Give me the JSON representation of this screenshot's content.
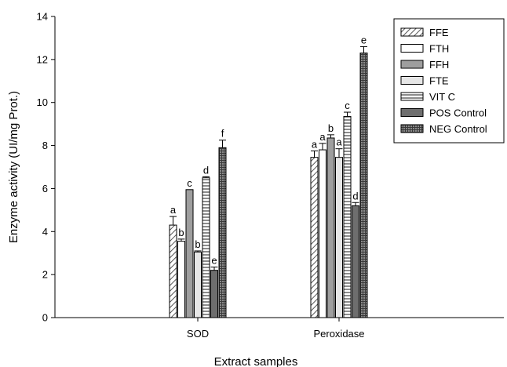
{
  "chart_data": {
    "type": "bar",
    "categories": [
      "SOD",
      "Peroxidase"
    ],
    "xlabel": "Extract samples",
    "ylabel": "Enzyme activity (UI/mg Prot.)",
    "ylim": [
      0,
      14
    ],
    "yticks": [
      0,
      2,
      4,
      6,
      8,
      10,
      12,
      14
    ],
    "grid": false,
    "legend_position": "top-right",
    "series": [
      {
        "name": "FFE",
        "pattern": "diagonal-hatch",
        "values": [
          4.3,
          7.45
        ],
        "errors": [
          0.4,
          0.3
        ],
        "labels": [
          "a",
          "a"
        ]
      },
      {
        "name": "FTH",
        "pattern": "white",
        "values": [
          3.55,
          7.8
        ],
        "errors": [
          0.1,
          0.3
        ],
        "labels": [
          "b",
          "a"
        ]
      },
      {
        "name": "FFH",
        "pattern": "grey",
        "values": [
          5.95,
          8.35
        ],
        "errors": [
          0.0,
          0.15
        ],
        "labels": [
          "c",
          "b"
        ]
      },
      {
        "name": "FTE",
        "pattern": "light-grey",
        "values": [
          3.05,
          7.45
        ],
        "errors": [
          0.05,
          0.4
        ],
        "labels": [
          "b",
          "a"
        ]
      },
      {
        "name": "VIT C",
        "pattern": "horizontal-lines",
        "values": [
          6.5,
          9.35
        ],
        "errors": [
          0.05,
          0.2
        ],
        "labels": [
          "d",
          "c"
        ]
      },
      {
        "name": "POS Control",
        "pattern": "dark-grey",
        "values": [
          2.2,
          5.2
        ],
        "errors": [
          0.15,
          0.15
        ],
        "labels": [
          "e",
          "d"
        ]
      },
      {
        "name": "NEG Control",
        "pattern": "crosshatch",
        "values": [
          7.9,
          12.3
        ],
        "errors": [
          0.35,
          0.3
        ],
        "labels": [
          "f",
          "e"
        ]
      }
    ]
  }
}
